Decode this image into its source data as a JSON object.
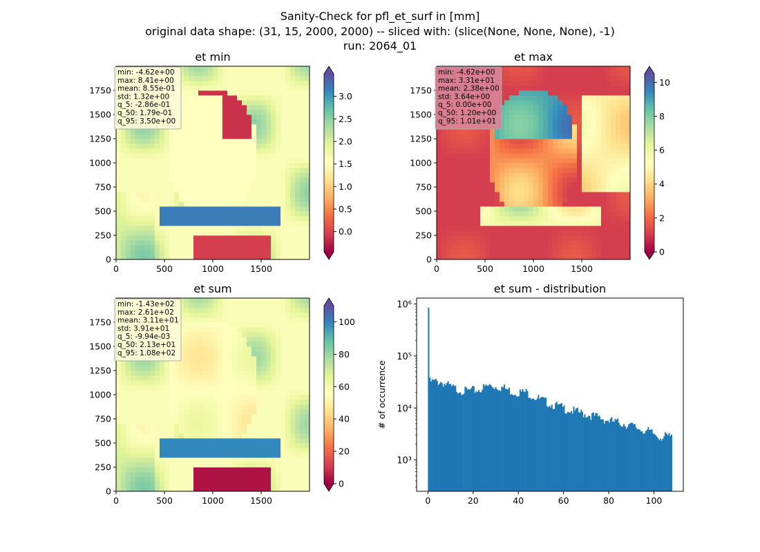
{
  "figure": {
    "title_lines": [
      "Sanity-Check for pfl_et_surf in [mm]",
      "original data shape: (31, 15, 2000, 2000) -- sliced with: (slice(None, None, None), -1)",
      "run: 2064_01"
    ]
  },
  "colors": {
    "spectral": [
      "#9e0142",
      "#d53e4f",
      "#f46d43",
      "#fdae61",
      "#fee08b",
      "#ffffbf",
      "#e6f598",
      "#abdda4",
      "#66c2a5",
      "#3288bd",
      "#5e4fa2"
    ],
    "histogram_bar": "#1f77b4"
  },
  "chart_data": [
    {
      "type": "heatmap",
      "title": "et min",
      "colormap": "Spectral",
      "x_range": [
        0,
        2000
      ],
      "y_range": [
        0,
        2000
      ],
      "x_ticks": [
        0,
        500,
        1000,
        1500
      ],
      "y_ticks": [
        0,
        250,
        500,
        750,
        1000,
        1250,
        1500,
        1750
      ],
      "colorbar_range": [
        -0.45,
        3.5
      ],
      "colorbar_ticks": [
        "0.0",
        "0.5",
        "1.0",
        "1.5",
        "2.0",
        "2.5",
        "3.0"
      ],
      "colorbar_tick_values": [
        0.0,
        0.5,
        1.0,
        1.5,
        2.0,
        2.5,
        3.0
      ],
      "colorbar_extend": "both",
      "stats": [
        "min: -4.62e+00",
        "max: 8.41e+00",
        "mean: 8.55e-01",
        "std: 1.32e+00",
        "q_5: -2.86e-01",
        "q_50: 1.79e-01",
        "q_95: 3.50e+00"
      ],
      "stats_box_color": "#fbfbd8"
    },
    {
      "type": "heatmap",
      "title": "et max",
      "colormap": "Spectral",
      "x_range": [
        0,
        2000
      ],
      "y_range": [
        0,
        2000
      ],
      "x_ticks": [
        0,
        500,
        1000,
        1500
      ],
      "y_ticks": [
        0,
        250,
        500,
        750,
        1000,
        1250,
        1500,
        1750
      ],
      "colorbar_range": [
        0,
        10.5
      ],
      "colorbar_ticks": [
        "0",
        "2",
        "4",
        "6",
        "8",
        "10"
      ],
      "colorbar_tick_values": [
        0,
        2,
        4,
        6,
        8,
        10
      ],
      "colorbar_extend": "both",
      "stats": [
        "min: -4.62e+00",
        "max: 3.31e+01",
        "mean: 2.38e+00",
        "std: 3.64e+00",
        "q_5: 0.00e+00",
        "q_50: 1.20e+00",
        "q_95: 1.01e+01"
      ],
      "stats_box_color": "#d98599"
    },
    {
      "type": "heatmap",
      "title": "et sum",
      "colormap": "Spectral",
      "x_range": [
        0,
        2000
      ],
      "y_range": [
        0,
        2000
      ],
      "x_ticks": [
        0,
        500,
        1000,
        1500
      ],
      "y_ticks": [
        0,
        250,
        500,
        750,
        1000,
        1250,
        1500,
        1750
      ],
      "colorbar_range": [
        0,
        110
      ],
      "colorbar_ticks": [
        "0",
        "20",
        "40",
        "60",
        "80",
        "100"
      ],
      "colorbar_tick_values": [
        0,
        20,
        40,
        60,
        80,
        100
      ],
      "colorbar_extend": "both",
      "stats": [
        "min: -1.43e+02",
        "max: 2.61e+02",
        "mean: 3.11e+01",
        "std: 3.91e+01",
        "q_5: -9.94e-03",
        "q_50: 2.13e+01",
        "q_95: 1.08e+02"
      ],
      "stats_box_color": "#fbfbd8"
    },
    {
      "type": "bar",
      "title": "et sum - distribution",
      "xlabel": "",
      "ylabel": "# of occurrence",
      "yscale": "log",
      "x_range": [
        -5,
        113
      ],
      "y_range": [
        250,
        1300000
      ],
      "x_ticks": [
        "0",
        "20",
        "40",
        "60",
        "80",
        "100"
      ],
      "x_tick_values": [
        0,
        20,
        40,
        60,
        80,
        100
      ],
      "y_ticks": [
        "10³",
        "10⁴",
        "10⁵",
        "10⁶"
      ],
      "y_tick_values": [
        1000,
        10000,
        100000,
        1000000
      ],
      "bin_width": 0.54,
      "x": [
        0.0,
        5.4,
        10.8,
        16.2,
        21.6,
        27.0,
        32.4,
        37.8,
        43.2,
        48.6,
        54.0,
        59.4,
        64.8,
        70.2,
        75.6,
        81.0,
        86.4,
        91.8,
        97.2,
        102.6,
        107.5
      ],
      "values": [
        850000,
        32000,
        24000,
        21000,
        22000,
        27000,
        25000,
        20000,
        20000,
        15000,
        12000,
        10000,
        8500,
        7500,
        6500,
        5500,
        5000,
        4200,
        3500,
        2800,
        2800
      ]
    }
  ]
}
